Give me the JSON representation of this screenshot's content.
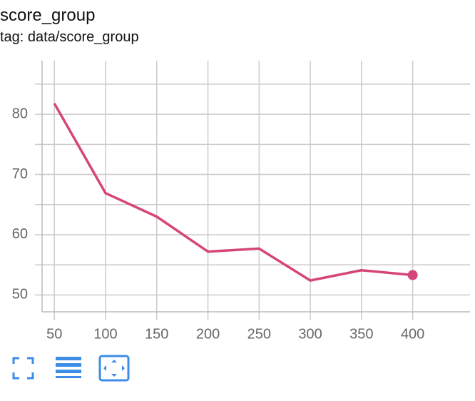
{
  "chart_data": {
    "type": "line",
    "title": "score_group",
    "subtitle": "tag: data/score_group",
    "x": [
      50,
      100,
      150,
      200,
      250,
      300,
      350,
      400
    ],
    "series": [
      {
        "name": "score_group",
        "color": "#d6457a",
        "values": [
          81.8,
          66.9,
          63.0,
          57.2,
          57.7,
          52.4,
          54.1,
          53.3
        ]
      }
    ],
    "xlim": [
      38,
      456
    ],
    "xticks": [
      50,
      100,
      150,
      200,
      250,
      300,
      350,
      400
    ],
    "ylim": [
      47.2,
      88.9
    ],
    "yticks": [
      50,
      60,
      70,
      80
    ],
    "y_minor_ticks": [
      55,
      65,
      75,
      85
    ],
    "grid": true
  }
}
